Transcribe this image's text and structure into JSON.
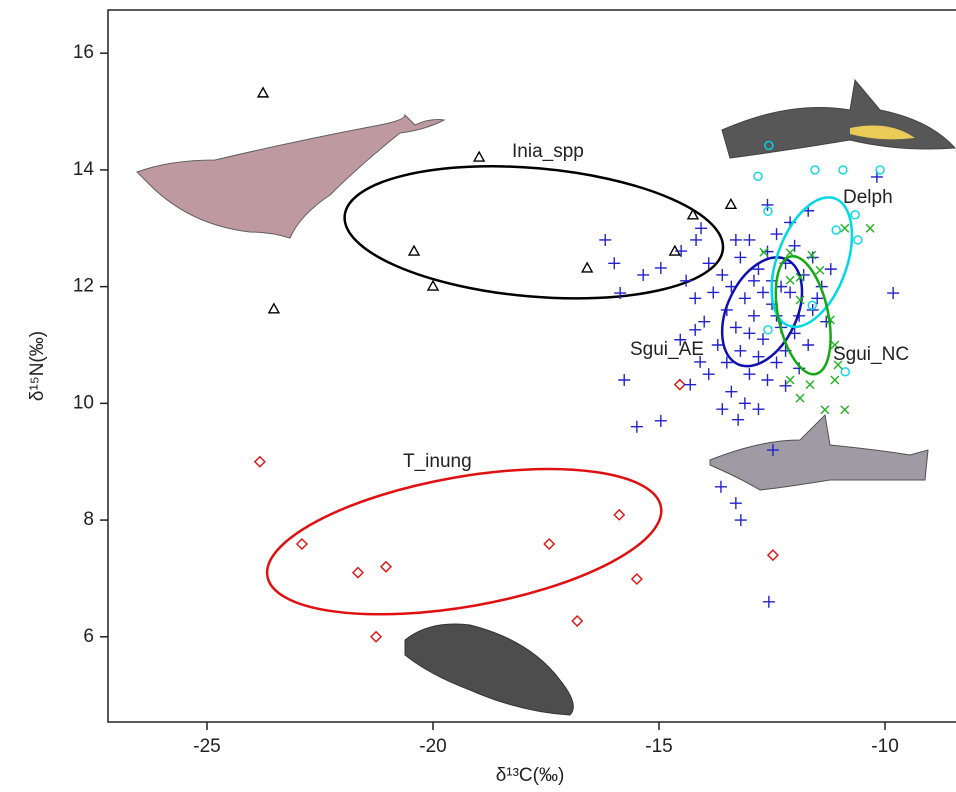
{
  "chart_data": {
    "type": "scatter",
    "xlabel": "δ¹³C(‰)",
    "ylabel": "δ¹⁵N(‰)",
    "xlim": [
      -27.19,
      -8.43
    ],
    "ylim": [
      4.54,
      16.74
    ],
    "xticks": [
      -25,
      -20,
      -15,
      -10
    ],
    "yticks": [
      6,
      8,
      10,
      12,
      14,
      16
    ],
    "series": [
      {
        "name": "Inia_spp",
        "color": "#000000",
        "marker": "triangle",
        "x": [
          -23.76,
          -23.52,
          -20.42,
          -20.0,
          -18.98,
          -16.59,
          -14.65,
          -14.25,
          -13.41
        ],
        "y": [
          15.32,
          11.62,
          12.61,
          12.01,
          14.22,
          12.32,
          12.61,
          13.23,
          13.41
        ],
        "ellipse": {
          "center": [
            -17.77,
            12.93
          ],
          "rx": 4.2,
          "ry": 1.1,
          "angle": 5,
          "color": "#000000"
        }
      },
      {
        "name": "T_inung",
        "color": "#e01010",
        "marker": "diamond",
        "x": [
          -23.83,
          -22.9,
          -21.66,
          -21.04,
          -17.43,
          -15.88,
          -15.49,
          -16.81,
          -21.26,
          -14.54,
          -12.48
        ],
        "y": [
          9.0,
          7.59,
          7.1,
          7.2,
          7.59,
          8.09,
          6.99,
          6.27,
          6.0,
          10.32,
          7.4
        ],
        "ellipse": {
          "center": [
            -19.31,
            7.63
          ],
          "rx": 4.42,
          "ry": 1.11,
          "angle": -10,
          "color": "#e01010"
        }
      },
      {
        "name": "Sgui_AE",
        "color": "#2222cc",
        "marker": "plus",
        "x": [
          -16.19,
          -15.99,
          -15.86,
          -15.77,
          -15.49,
          -14.96,
          -15.35,
          -14.96,
          -14.51,
          -14.18,
          -14.07,
          -13.63,
          -13.3,
          -13.19,
          -12.57,
          -12.48,
          -9.82,
          -10.18,
          -13.25,
          -14.31,
          -14.09,
          -14.53,
          -14.2,
          -13.6,
          -13.4,
          -13.2,
          -13.0,
          -12.8,
          -12.6,
          -12.4,
          -12.2,
          -12.0,
          -11.8,
          -11.6,
          -11.4,
          -13.5,
          -13.3,
          -13.1,
          -12.9,
          -12.7,
          -12.5,
          -12.3,
          -12.1,
          -11.9,
          -11.7,
          -13.7,
          -13.5,
          -13.2,
          -13.0,
          -12.8,
          -12.6,
          -12.4,
          -12.2,
          -13.8,
          -14.0,
          -13.9,
          -12.9,
          -12.7,
          -12.5,
          -12.3,
          -11.5,
          -11.3,
          -11.2,
          -13.4,
          -13.1,
          -12.8,
          -13.6,
          -12.2,
          -11.9,
          -13.3,
          -12.1,
          -12.6,
          -11.7,
          -14.2,
          -14.4,
          -13.0,
          -12.4,
          -12.0,
          -11.6,
          -13.9
        ],
        "y": [
          12.8,
          12.4,
          11.89,
          10.4,
          9.6,
          9.7,
          12.2,
          12.32,
          12.61,
          12.8,
          13.0,
          8.57,
          8.29,
          8.0,
          6.6,
          9.2,
          11.89,
          13.88,
          9.72,
          10.32,
          10.71,
          11.09,
          11.26,
          12.2,
          12.0,
          12.5,
          12.8,
          12.3,
          12.6,
          12.9,
          12.4,
          12.7,
          12.2,
          12.5,
          12.0,
          11.6,
          11.3,
          11.8,
          11.5,
          11.1,
          11.7,
          11.3,
          11.9,
          11.5,
          11.0,
          11.0,
          10.7,
          10.9,
          10.5,
          10.8,
          10.4,
          10.7,
          10.9,
          11.9,
          11.4,
          12.4,
          12.1,
          11.9,
          12.1,
          12.0,
          11.8,
          11.4,
          12.3,
          10.2,
          10.0,
          9.9,
          9.9,
          10.3,
          10.6,
          12.8,
          13.1,
          13.4,
          13.3,
          11.8,
          12.1,
          11.2,
          11.5,
          11.2,
          11.6,
          10.5
        ],
        "ellipse": {
          "center": [
            -12.72,
            11.57
          ],
          "rx": 0.77,
          "ry": 0.99,
          "angle": 25,
          "color": "#1010b0"
        }
      },
      {
        "name": "Delph",
        "color": "#00d8e8",
        "marker": "circle",
        "x": [
          -12.57,
          -12.81,
          -12.59,
          -11.55,
          -10.93,
          -10.11,
          -10.66,
          -10.6,
          -11.08,
          -11.61,
          -12.59,
          -10.88
        ],
        "y": [
          14.42,
          13.89,
          13.29,
          14.0,
          14.0,
          14.0,
          13.23,
          12.8,
          12.97,
          11.68,
          11.26,
          10.54
        ],
        "ellipse": {
          "center": [
            -11.62,
            12.42
          ],
          "rx": 0.77,
          "ry": 1.16,
          "angle": 20,
          "color": "#00d8e8"
        }
      },
      {
        "name": "Sgui_NC",
        "color": "#22b022",
        "marker": "x",
        "x": [
          -12.68,
          -12.1,
          -10.89,
          -10.33,
          -11.62,
          -11.88,
          -11.44,
          -12.1,
          -11.88,
          -11.21,
          -11.11,
          -11.11,
          -12.1,
          -11.66,
          -11.88,
          -11.33,
          -10.89,
          -11.04
        ],
        "y": [
          12.59,
          12.58,
          13.0,
          13.0,
          12.54,
          12.16,
          12.28,
          12.11,
          11.77,
          11.43,
          11.0,
          10.4,
          10.4,
          10.32,
          10.09,
          9.89,
          9.89,
          10.66
        ],
        "ellipse": {
          "center": [
            -11.81,
            11.51
          ],
          "rx": 0.55,
          "ry": 1.03,
          "angle": -12,
          "color": "#11aa11"
        }
      }
    ]
  }
}
